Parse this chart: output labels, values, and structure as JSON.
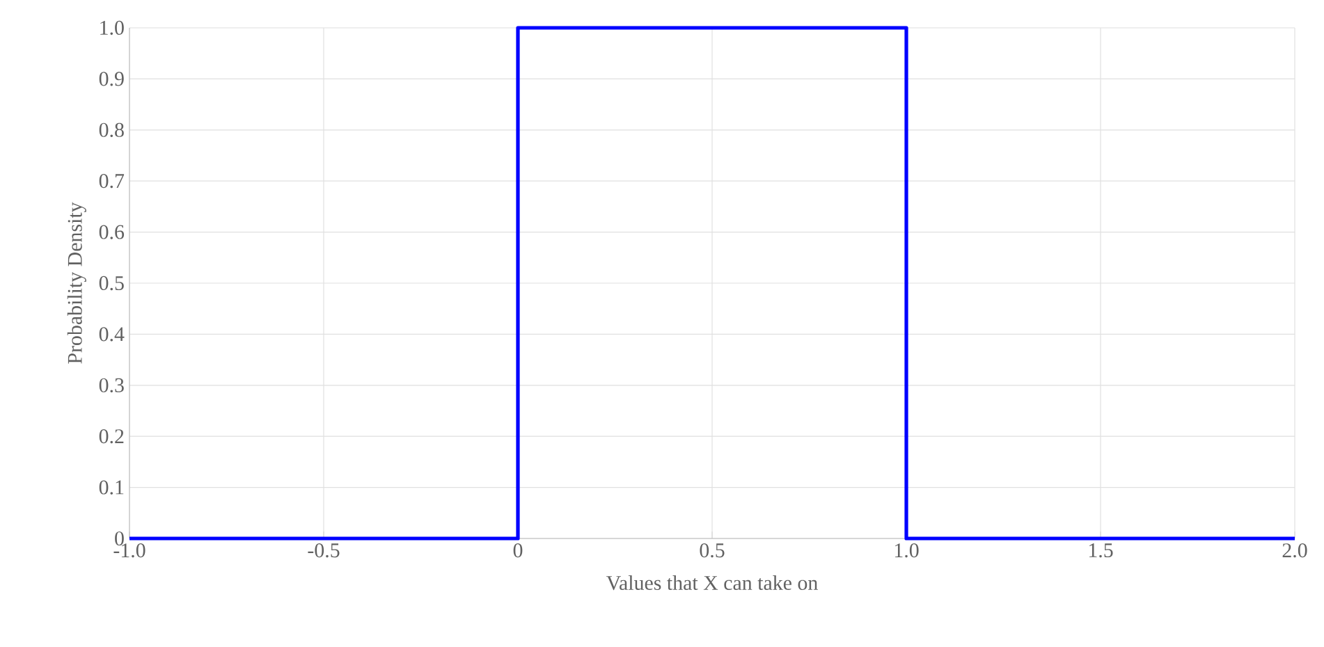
{
  "chart_data": {
    "type": "line",
    "xlabel": "Values that X can take on",
    "ylabel": "Probability Density",
    "x": [
      -1,
      0,
      0,
      1,
      1,
      2
    ],
    "series": [
      {
        "color": "#0000ff",
        "values": [
          0,
          0,
          1,
          1,
          0,
          0
        ]
      }
    ],
    "xlim": [
      -1,
      2
    ],
    "ylim": [
      0,
      1
    ],
    "xticks": [
      {
        "value": -1,
        "label": "-1.0"
      },
      {
        "value": -0.5,
        "label": "-0.5"
      },
      0,
      0.5,
      {
        "value": 1,
        "label": "1.0"
      },
      1.5,
      {
        "value": 2,
        "label": "2.0"
      }
    ],
    "yticks": [
      0,
      0.1,
      0.2,
      0.3,
      0.4,
      0.5,
      0.6,
      0.7,
      0.8,
      0.9,
      {
        "value": 1,
        "label": "1.0"
      }
    ],
    "grid": true,
    "marker": "none",
    "line_style": "solid"
  }
}
